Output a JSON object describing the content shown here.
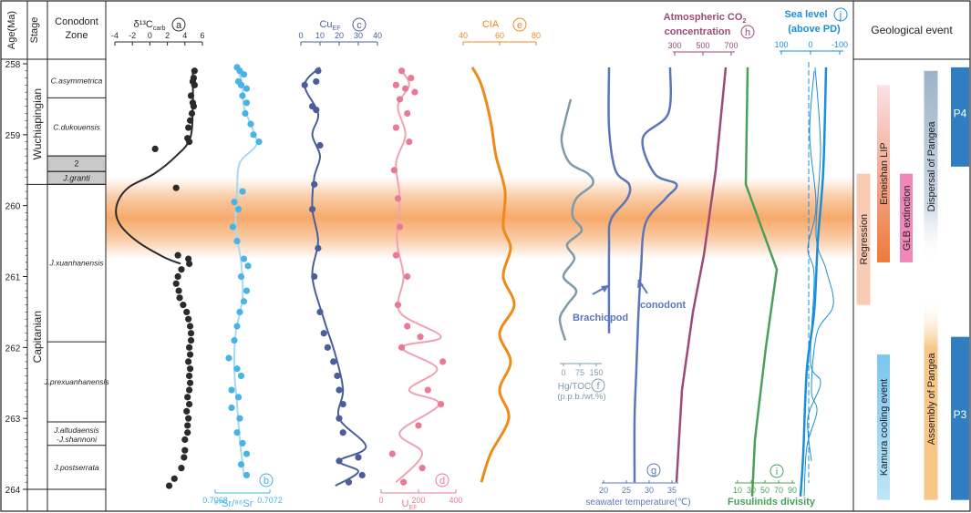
{
  "chart_data": {
    "type": "line",
    "columns_header": {
      "age": "Age(Ma)",
      "stage": "Stage",
      "zone": "Conodont Zone",
      "event": "Geological event"
    },
    "age_axis": {
      "range": [
        258,
        264
      ],
      "ticks": [
        258,
        259,
        260,
        261,
        262,
        263,
        264
      ]
    },
    "stages": [
      {
        "label": "Wuchiapingian",
        "from": 258,
        "to": 259.7
      },
      {
        "label": "Capitanian",
        "from": 259.7,
        "to": 264
      }
    ],
    "zones": [
      {
        "label": "C.asymmetrica",
        "from": 258,
        "to": 258.48
      },
      {
        "label": "C.dukouensis",
        "from": 258.48,
        "to": 259.3
      },
      {
        "label": "2",
        "from": 259.3,
        "to": 259.52,
        "grey": true
      },
      {
        "label": "J.granti",
        "from": 259.52,
        "to": 259.7,
        "grey": true
      },
      {
        "label": "J.xuanhanensis",
        "from": 259.7,
        "to": 261.92
      },
      {
        "label": "J.prexuanhanensis",
        "from": 261.92,
        "to": 263.05
      },
      {
        "label": "J.altudaensis",
        "label2": "-J.shannoni",
        "from": 263.05,
        "to": 263.38
      },
      {
        "label": "J.postserrata",
        "from": 263.38,
        "to": 264
      }
    ],
    "highlight_band": {
      "from": 259.6,
      "to": 260.75,
      "color": "#f5a05a"
    },
    "panels": [
      {
        "key": "a",
        "title": "δ¹³C",
        "sub": "carb",
        "circle": "a",
        "color": "#2b2b2b",
        "range": [
          -4,
          6
        ],
        "ticks": [
          "-4",
          "-2",
          "0",
          "2",
          "4",
          "6"
        ],
        "axis_pos": "top",
        "points": [
          [
            5.1,
            258.1
          ],
          [
            5.0,
            258.2
          ],
          [
            4.9,
            258.25
          ],
          [
            5.1,
            258.3
          ],
          [
            4.7,
            258.45
          ],
          [
            4.9,
            258.55
          ],
          [
            5.0,
            258.6
          ],
          [
            4.8,
            258.7
          ],
          [
            4.6,
            258.8
          ],
          [
            4.4,
            258.9
          ],
          [
            4.3,
            259.05
          ],
          [
            4.5,
            259.1
          ],
          [
            0.6,
            259.2
          ],
          [
            3.0,
            259.75
          ],
          [
            3.2,
            260.7
          ],
          [
            4.4,
            260.75
          ],
          [
            4.5,
            260.82
          ],
          [
            3.6,
            260.9
          ],
          [
            3.2,
            261.0
          ],
          [
            3.0,
            261.1
          ],
          [
            3.3,
            261.2
          ],
          [
            3.4,
            261.3
          ],
          [
            3.8,
            261.4
          ],
          [
            4.2,
            261.5
          ],
          [
            4.4,
            261.6
          ],
          [
            4.6,
            261.7
          ],
          [
            4.7,
            261.8
          ],
          [
            4.7,
            261.9
          ],
          [
            4.5,
            262.0
          ],
          [
            4.6,
            262.1
          ],
          [
            4.4,
            262.2
          ],
          [
            4.6,
            262.3
          ],
          [
            4.5,
            262.4
          ],
          [
            4.6,
            262.5
          ],
          [
            4.5,
            262.6
          ],
          [
            4.3,
            262.7
          ],
          [
            4.5,
            262.8
          ],
          [
            4.2,
            262.9
          ],
          [
            4.4,
            263.0
          ],
          [
            4.3,
            263.1
          ],
          [
            4.3,
            263.2
          ],
          [
            4.0,
            263.3
          ],
          [
            4.0,
            263.45
          ],
          [
            3.9,
            263.55
          ],
          [
            3.6,
            263.7
          ],
          [
            2.8,
            263.85
          ],
          [
            2.2,
            263.95
          ]
        ],
        "curve": [
          [
            4.9,
            258.1
          ],
          [
            4.9,
            258.6
          ],
          [
            4.6,
            259.05
          ],
          [
            3.0,
            259.3
          ],
          [
            0.5,
            259.55
          ],
          [
            -2.5,
            259.75
          ],
          [
            -3.8,
            260.0
          ],
          [
            -3.5,
            260.25
          ],
          [
            -1.5,
            260.5
          ],
          [
            1.5,
            260.72
          ],
          [
            3.5,
            260.82
          ]
        ]
      },
      {
        "key": "b",
        "title": "⁸⁷Sr/⁸⁶Sr",
        "circle": "b",
        "color": "#4ab3e6",
        "curve_color": "#a8d9f3",
        "range": [
          0.7068,
          0.7072
        ],
        "ticks": [
          "0.7068",
          "0.7072"
        ],
        "axis_pos": "bottom",
        "points": [
          [
            0.70696,
            258.05
          ],
          [
            0.70698,
            258.1
          ],
          [
            0.70701,
            258.15
          ],
          [
            0.70697,
            258.25
          ],
          [
            0.70699,
            258.3
          ],
          [
            0.70703,
            258.35
          ],
          [
            0.707,
            258.45
          ],
          [
            0.70703,
            258.55
          ],
          [
            0.70702,
            258.7
          ],
          [
            0.70706,
            258.85
          ],
          [
            0.70708,
            259.0
          ],
          [
            0.70712,
            259.1
          ],
          [
            0.707,
            259.8
          ],
          [
            0.70694,
            259.95
          ],
          [
            0.70697,
            260.05
          ],
          [
            0.70693,
            260.3
          ],
          [
            0.70696,
            260.5
          ],
          [
            0.70701,
            260.75
          ],
          [
            0.70704,
            260.85
          ],
          [
            0.70699,
            261.0
          ],
          [
            0.70703,
            261.2
          ],
          [
            0.70701,
            261.35
          ],
          [
            0.70698,
            261.5
          ],
          [
            0.70696,
            261.7
          ],
          [
            0.70694,
            261.9
          ],
          [
            0.7069,
            262.15
          ],
          [
            0.70696,
            262.3
          ],
          [
            0.70699,
            262.4
          ],
          [
            0.70692,
            262.6
          ],
          [
            0.70697,
            262.7
          ],
          [
            0.70692,
            262.85
          ],
          [
            0.70698,
            263.0
          ],
          [
            0.70696,
            263.2
          ],
          [
            0.707,
            263.35
          ],
          [
            0.70703,
            263.5
          ],
          [
            0.70699,
            263.65
          ],
          [
            0.70703,
            263.8
          ]
        ],
        "curve": [
          [
            0.70697,
            258.1
          ],
          [
            0.707,
            258.3
          ],
          [
            0.70701,
            258.6
          ],
          [
            0.70708,
            258.95
          ],
          [
            0.7071,
            259.15
          ],
          [
            0.70698,
            259.4
          ],
          [
            0.70696,
            259.8
          ],
          [
            0.70695,
            260.3
          ],
          [
            0.70699,
            260.8
          ],
          [
            0.707,
            261.3
          ],
          [
            0.70695,
            261.8
          ],
          [
            0.70694,
            262.3
          ],
          [
            0.70696,
            262.8
          ],
          [
            0.70698,
            263.3
          ],
          [
            0.70701,
            263.8
          ]
        ]
      },
      {
        "key": "c",
        "title": "Cu",
        "sub": "EF",
        "circle": "c",
        "color": "#4a5f9a",
        "range": [
          0,
          40
        ],
        "ticks": [
          "0",
          "10",
          "20",
          "30",
          "40"
        ],
        "axis_pos": "top",
        "points": [
          [
            9,
            258.1
          ],
          [
            8,
            258.25
          ],
          [
            2,
            258.3
          ],
          [
            6,
            258.6
          ],
          [
            8,
            258.65
          ],
          [
            10,
            259.15
          ],
          [
            7,
            259.7
          ],
          [
            6,
            260.05
          ],
          [
            9,
            260.6
          ],
          [
            7,
            261.0
          ],
          [
            10,
            261.5
          ],
          [
            12,
            261.8
          ],
          [
            14,
            262.0
          ],
          [
            17,
            262.2
          ],
          [
            19,
            262.4
          ],
          [
            20,
            262.6
          ],
          [
            22,
            262.8
          ],
          [
            20,
            263.0
          ],
          [
            22,
            263.2
          ],
          [
            30,
            263.55
          ],
          [
            32,
            263.8
          ],
          [
            20,
            263.6
          ],
          [
            25,
            263.9
          ]
        ],
        "curve": [
          [
            10,
            258.05
          ],
          [
            2,
            258.3
          ],
          [
            9,
            258.7
          ],
          [
            6,
            259.0
          ],
          [
            10,
            259.3
          ],
          [
            7,
            259.6
          ],
          [
            6,
            260.05
          ],
          [
            9,
            260.5
          ],
          [
            6,
            261.0
          ],
          [
            12,
            261.6
          ],
          [
            18,
            262.1
          ],
          [
            22,
            262.6
          ],
          [
            20,
            263.0
          ],
          [
            34,
            263.4
          ],
          [
            20,
            263.6
          ],
          [
            30,
            263.75
          ],
          [
            18,
            263.95
          ]
        ]
      },
      {
        "key": "d",
        "title": "U",
        "sub": "EF",
        "circle": "d",
        "color": "#e87a95",
        "curve_color": "#f0a2b2",
        "range": [
          0,
          400
        ],
        "ticks": [
          "0",
          "200",
          "400"
        ],
        "axis_pos": "bottom",
        "points": [
          [
            110,
            258.1
          ],
          [
            160,
            258.2
          ],
          [
            80,
            258.3
          ],
          [
            130,
            258.35
          ],
          [
            180,
            258.4
          ],
          [
            100,
            258.5
          ],
          [
            140,
            258.7
          ],
          [
            80,
            258.9
          ],
          [
            150,
            259.1
          ],
          [
            70,
            259.5
          ],
          [
            90,
            259.9
          ],
          [
            100,
            260.3
          ],
          [
            80,
            260.7
          ],
          [
            140,
            261.0
          ],
          [
            90,
            261.4
          ],
          [
            140,
            261.7
          ],
          [
            210,
            261.85
          ],
          [
            110,
            262.0
          ],
          [
            330,
            262.2
          ],
          [
            250,
            262.6
          ],
          [
            320,
            262.8
          ],
          [
            200,
            263.1
          ],
          [
            60,
            263.5
          ],
          [
            220,
            263.7
          ],
          [
            120,
            263.9
          ]
        ],
        "curve": [
          [
            110,
            258.1
          ],
          [
            150,
            258.3
          ],
          [
            90,
            258.6
          ],
          [
            130,
            259.0
          ],
          [
            80,
            259.4
          ],
          [
            100,
            259.9
          ],
          [
            85,
            260.5
          ],
          [
            120,
            261.0
          ],
          [
            100,
            261.5
          ],
          [
            320,
            261.85
          ],
          [
            110,
            262.0
          ],
          [
            300,
            262.3
          ],
          [
            150,
            262.6
          ],
          [
            310,
            262.8
          ],
          [
            100,
            263.2
          ],
          [
            220,
            263.5
          ],
          [
            80,
            263.9
          ]
        ]
      },
      {
        "key": "e",
        "title": "CIA",
        "circle": "e",
        "color": "#ee8a1a",
        "range": [
          40,
          80
        ],
        "ticks": [
          "40",
          "60",
          "80"
        ],
        "axis_pos": "top",
        "curve": [
          [
            45,
            258.05
          ],
          [
            50,
            258.3
          ],
          [
            55,
            258.8
          ],
          [
            58,
            259.3
          ],
          [
            63,
            259.8
          ],
          [
            62,
            260.3
          ],
          [
            66,
            260.6
          ],
          [
            62,
            261.0
          ],
          [
            68,
            261.4
          ],
          [
            60,
            261.8
          ],
          [
            66,
            262.2
          ],
          [
            60,
            262.6
          ],
          [
            65,
            263.0
          ],
          [
            55,
            263.5
          ],
          [
            50,
            263.9
          ]
        ]
      }
    ],
    "hg_panel": {
      "label": "Hg/TOC",
      "unit": "(p.p.b./wt.%)",
      "circle": "f",
      "ticks": [
        "0",
        "75",
        "150"
      ],
      "color": "#7f9aa8"
    },
    "temp_panel": {
      "label": "seawater temperature(℃)",
      "circle": "g",
      "ticks": [
        "20",
        "25",
        "30",
        "35"
      ],
      "series": [
        "Brachiopod",
        "conodont"
      ],
      "color": "#5b77b9"
    },
    "co2_panel": {
      "label": "Atmospheric CO",
      "label_sub": "2",
      "label2": "concentration",
      "circle": "h",
      "ticks": [
        "300",
        "500",
        "700"
      ],
      "color": "#9b4a79"
    },
    "fusulinid_panel": {
      "label": "Fusulinids divisity",
      "circle": "i",
      "ticks": [
        "10",
        "30",
        "50",
        "70",
        "90"
      ],
      "color": "#4aa05a"
    },
    "sealevel_panel": {
      "label": "Sea level",
      "label2": "(above PD)",
      "circle": "j",
      "ticks": [
        "100",
        "0",
        "-100"
      ],
      "color": "#1a8fd8"
    },
    "events": [
      {
        "label": "Regression",
        "color": "#f8cbb5",
        "from": 259.55,
        "to": 261.4
      },
      {
        "label": "Emeishan LIP",
        "color": "#ee7a3a",
        "from": 258.3,
        "to": 260.8
      },
      {
        "label": "GLB extinction",
        "color": "#ef88b8",
        "from": 259.55,
        "to": 260.8
      },
      {
        "label": "Dispersal of Pangea",
        "color": "#9db3c8",
        "from": 258.1,
        "to": 260.8
      },
      {
        "label": "P4",
        "color": "#2f7ec2",
        "from": 258.05,
        "to": 259.45
      },
      {
        "label": "Kamura cooling event",
        "color": "#7cc6ee",
        "from": 262.1,
        "to": 264.15
      },
      {
        "label": "Assembly of Pangea",
        "color": "#f6c787",
        "from": 261.3,
        "to": 264.15
      },
      {
        "label": "P3",
        "color": "#2f7ec2",
        "from": 261.85,
        "to": 264.15
      }
    ]
  }
}
